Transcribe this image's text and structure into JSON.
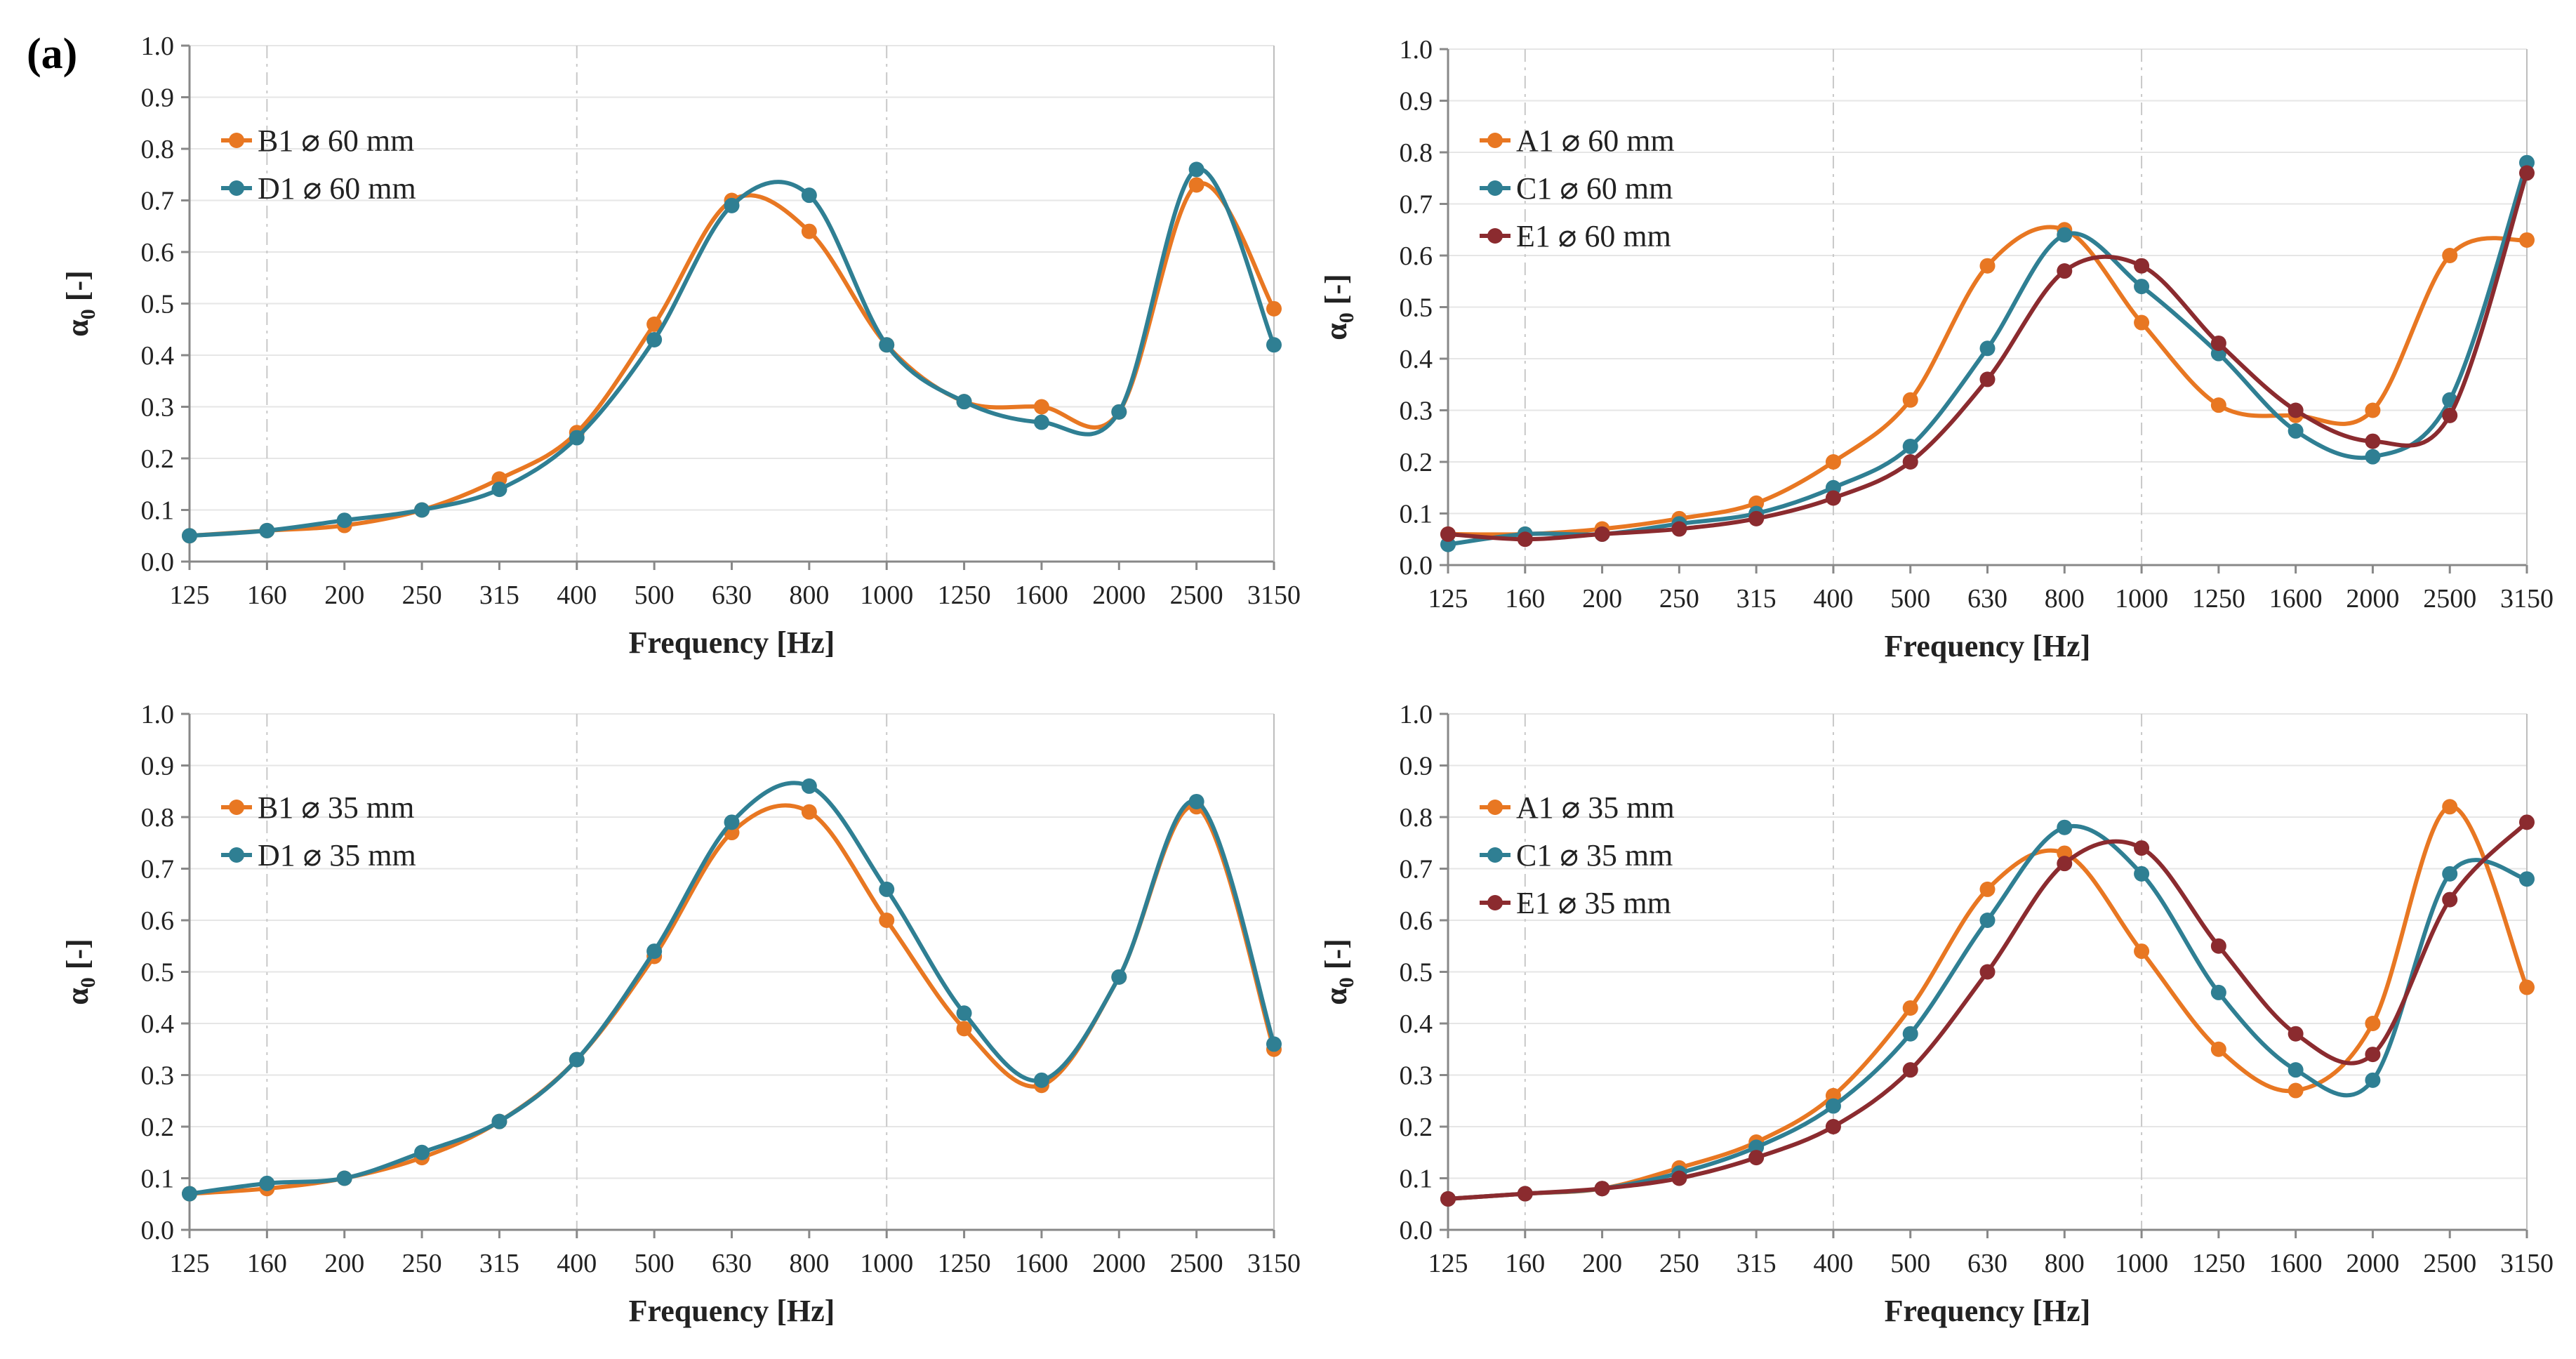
{
  "figure": {
    "panel_label": "(a)"
  },
  "colors": {
    "orange": "#E87722",
    "teal": "#2F7F93",
    "maroon": "#8B2B2F",
    "axis": "#888888",
    "grid_major": "#e6e6e6",
    "grid_dashed": "#c8c8c8",
    "text": "#222222"
  },
  "chart_data": [
    {
      "type": "line",
      "panel": "top-left",
      "categories": [
        "125",
        "160",
        "200",
        "250",
        "315",
        "400",
        "500",
        "630",
        "800",
        "1000",
        "1250",
        "1600",
        "2000",
        "2500",
        "3150"
      ],
      "series": [
        {
          "name": "B1 ⌀ 60 mm",
          "color": "orange",
          "values": [
            0.05,
            0.06,
            0.07,
            0.1,
            0.16,
            0.25,
            0.46,
            0.7,
            0.64,
            0.42,
            0.31,
            0.3,
            0.29,
            0.73,
            0.49
          ]
        },
        {
          "name": "D1 ⌀ 60 mm",
          "color": "teal",
          "values": [
            0.05,
            0.06,
            0.08,
            0.1,
            0.14,
            0.24,
            0.43,
            0.69,
            0.71,
            0.42,
            0.31,
            0.27,
            0.29,
            0.76,
            0.42
          ]
        }
      ],
      "yticks": [
        "0.0",
        "0.1",
        "0.2",
        "0.3",
        "0.4",
        "0.5",
        "0.6",
        "0.7",
        "0.8",
        "0.9",
        "1.0"
      ],
      "ylim": [
        0,
        1
      ],
      "xlabel": "Frequency [Hz]",
      "ylabel": "α0 [-]",
      "legend": "top-left"
    },
    {
      "type": "line",
      "panel": "top-right",
      "categories": [
        "125",
        "160",
        "200",
        "250",
        "315",
        "400",
        "500",
        "630",
        "800",
        "1000",
        "1250",
        "1600",
        "2000",
        "2500",
        "3150"
      ],
      "series": [
        {
          "name": "A1 ⌀ 60 mm",
          "color": "orange",
          "values": [
            0.06,
            0.06,
            0.07,
            0.09,
            0.12,
            0.2,
            0.32,
            0.58,
            0.65,
            0.47,
            0.31,
            0.29,
            0.3,
            0.6,
            0.63
          ]
        },
        {
          "name": "C1 ⌀ 60 mm",
          "color": "teal",
          "values": [
            0.04,
            0.06,
            0.06,
            0.08,
            0.1,
            0.15,
            0.23,
            0.42,
            0.64,
            0.54,
            0.41,
            0.26,
            0.21,
            0.32,
            0.78
          ]
        },
        {
          "name": "E1 ⌀ 60 mm",
          "color": "maroon",
          "values": [
            0.06,
            0.05,
            0.06,
            0.07,
            0.09,
            0.13,
            0.2,
            0.36,
            0.57,
            0.58,
            0.43,
            0.3,
            0.24,
            0.29,
            0.76
          ]
        }
      ],
      "yticks": [
        "0.0",
        "0.1",
        "0.2",
        "0.3",
        "0.4",
        "0.5",
        "0.6",
        "0.7",
        "0.8",
        "0.9",
        "1.0"
      ],
      "ylim": [
        0,
        1
      ],
      "xlabel": "Frequency [Hz]",
      "ylabel": "α0 [-]",
      "legend": "top-left"
    },
    {
      "type": "line",
      "panel": "bottom-left",
      "categories": [
        "125",
        "160",
        "200",
        "250",
        "315",
        "400",
        "500",
        "630",
        "800",
        "1000",
        "1250",
        "1600",
        "2000",
        "2500",
        "3150"
      ],
      "series": [
        {
          "name": "B1 ⌀ 35 mm",
          "color": "orange",
          "values": [
            0.07,
            0.08,
            0.1,
            0.14,
            0.21,
            0.33,
            0.53,
            0.77,
            0.81,
            0.6,
            0.39,
            0.28,
            0.49,
            0.82,
            0.35
          ]
        },
        {
          "name": "D1 ⌀ 35 mm",
          "color": "teal",
          "values": [
            0.07,
            0.09,
            0.1,
            0.15,
            0.21,
            0.33,
            0.54,
            0.79,
            0.86,
            0.66,
            0.42,
            0.29,
            0.49,
            0.83,
            0.36
          ]
        }
      ],
      "yticks": [
        "0.0",
        "0.1",
        "0.2",
        "0.3",
        "0.4",
        "0.5",
        "0.6",
        "0.7",
        "0.8",
        "0.9",
        "1.0"
      ],
      "ylim": [
        0,
        1
      ],
      "xlabel": "Frequency [Hz]",
      "ylabel": "α0 [-]",
      "legend": "top-left"
    },
    {
      "type": "line",
      "panel": "bottom-right",
      "categories": [
        "125",
        "160",
        "200",
        "250",
        "315",
        "400",
        "500",
        "630",
        "800",
        "1000",
        "1250",
        "1600",
        "2000",
        "2500",
        "3150"
      ],
      "series": [
        {
          "name": "A1 ⌀ 35 mm",
          "color": "orange",
          "values": [
            0.06,
            0.07,
            0.08,
            0.12,
            0.17,
            0.26,
            0.43,
            0.66,
            0.73,
            0.54,
            0.35,
            0.27,
            0.4,
            0.82,
            0.47
          ]
        },
        {
          "name": "C1 ⌀ 35 mm",
          "color": "teal",
          "values": [
            0.06,
            0.07,
            0.08,
            0.11,
            0.16,
            0.24,
            0.38,
            0.6,
            0.78,
            0.69,
            0.46,
            0.31,
            0.29,
            0.69,
            0.68
          ]
        },
        {
          "name": "E1 ⌀ 35 mm",
          "color": "maroon",
          "values": [
            0.06,
            0.07,
            0.08,
            0.1,
            0.14,
            0.2,
            0.31,
            0.5,
            0.71,
            0.74,
            0.55,
            0.38,
            0.34,
            0.64,
            0.79
          ]
        }
      ],
      "yticks": [
        "0.0",
        "0.1",
        "0.2",
        "0.3",
        "0.4",
        "0.5",
        "0.6",
        "0.7",
        "0.8",
        "0.9",
        "1.0"
      ],
      "ylim": [
        0,
        1
      ],
      "xlabel": "Frequency [Hz]",
      "ylabel": "α0 [-]",
      "legend": "top-left"
    }
  ]
}
